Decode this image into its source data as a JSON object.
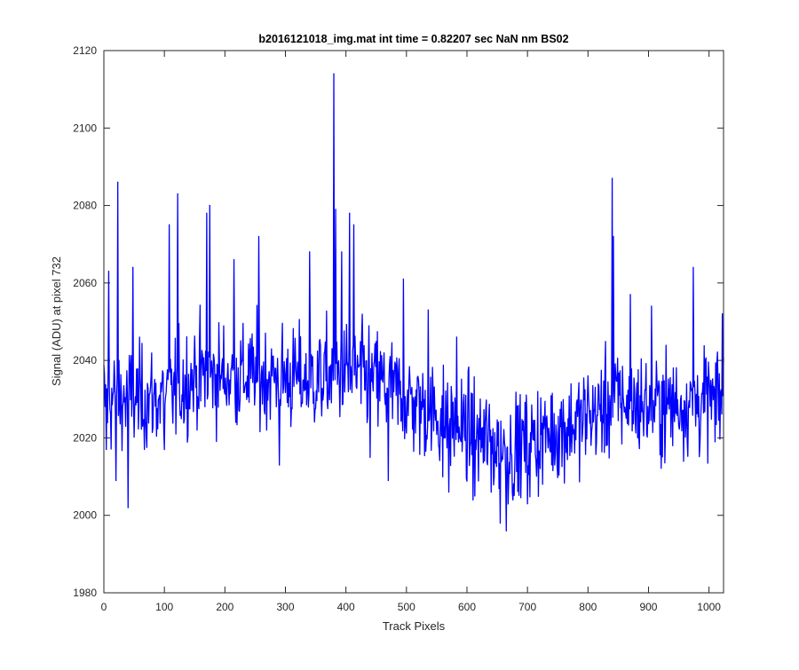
{
  "figure": {
    "background": "#ffffff"
  },
  "chart_data": {
    "type": "line",
    "title": "b2016121018_img.mat int time = 0.82207 sec  NaN nm BS02",
    "xlabel": "Track Pixels",
    "ylabel": "Signal (ADU) at pixel 732",
    "xlim": [
      0,
      1024
    ],
    "ylim": [
      1980,
      2120
    ],
    "xticks": [
      0,
      100,
      200,
      300,
      400,
      500,
      600,
      700,
      800,
      900,
      1000
    ],
    "yticks": [
      1980,
      2000,
      2020,
      2040,
      2060,
      2080,
      2100,
      2120
    ],
    "grid": false,
    "legend": "none",
    "line_color": "#0000ff",
    "x_start": 0,
    "x_step": 1,
    "noise_amplitude": 11,
    "baseline_points": [
      {
        "x": 0,
        "y": 2030
      },
      {
        "x": 100,
        "y": 2030
      },
      {
        "x": 150,
        "y": 2036
      },
      {
        "x": 250,
        "y": 2036
      },
      {
        "x": 350,
        "y": 2035
      },
      {
        "x": 400,
        "y": 2037
      },
      {
        "x": 450,
        "y": 2035
      },
      {
        "x": 500,
        "y": 2030
      },
      {
        "x": 560,
        "y": 2025
      },
      {
        "x": 620,
        "y": 2020
      },
      {
        "x": 670,
        "y": 2017
      },
      {
        "x": 720,
        "y": 2020
      },
      {
        "x": 800,
        "y": 2025
      },
      {
        "x": 850,
        "y": 2030
      },
      {
        "x": 900,
        "y": 2028
      },
      {
        "x": 1024,
        "y": 2030
      }
    ],
    "notable_points": [
      {
        "x": 4,
        "y": 2017
      },
      {
        "x": 8,
        "y": 2063
      },
      {
        "x": 20,
        "y": 2009
      },
      {
        "x": 23,
        "y": 2086
      },
      {
        "x": 40,
        "y": 2002
      },
      {
        "x": 48,
        "y": 2064
      },
      {
        "x": 100,
        "y": 2017
      },
      {
        "x": 108,
        "y": 2075
      },
      {
        "x": 122,
        "y": 2083
      },
      {
        "x": 175,
        "y": 2080
      },
      {
        "x": 170,
        "y": 2078
      },
      {
        "x": 215,
        "y": 2066
      },
      {
        "x": 256,
        "y": 2072
      },
      {
        "x": 290,
        "y": 2013
      },
      {
        "x": 340,
        "y": 2068
      },
      {
        "x": 380,
        "y": 2114
      },
      {
        "x": 383,
        "y": 2079
      },
      {
        "x": 393,
        "y": 2068
      },
      {
        "x": 413,
        "y": 2075
      },
      {
        "x": 406,
        "y": 2078
      },
      {
        "x": 440,
        "y": 2015
      },
      {
        "x": 470,
        "y": 2009
      },
      {
        "x": 495,
        "y": 2061
      },
      {
        "x": 536,
        "y": 2053
      },
      {
        "x": 560,
        "y": 2010
      },
      {
        "x": 570,
        "y": 2006
      },
      {
        "x": 583,
        "y": 2046
      },
      {
        "x": 613,
        "y": 2005
      },
      {
        "x": 640,
        "y": 2006
      },
      {
        "x": 655,
        "y": 1998
      },
      {
        "x": 665,
        "y": 1996
      },
      {
        "x": 676,
        "y": 2004
      },
      {
        "x": 700,
        "y": 2003
      },
      {
        "x": 800,
        "y": 2036
      },
      {
        "x": 840,
        "y": 2087
      },
      {
        "x": 842,
        "y": 2072
      },
      {
        "x": 870,
        "y": 2057
      },
      {
        "x": 905,
        "y": 2054
      },
      {
        "x": 974,
        "y": 2064
      },
      {
        "x": 1000,
        "y": 2036
      },
      {
        "x": 1010,
        "y": 2019
      },
      {
        "x": 1022,
        "y": 2052
      }
    ]
  }
}
